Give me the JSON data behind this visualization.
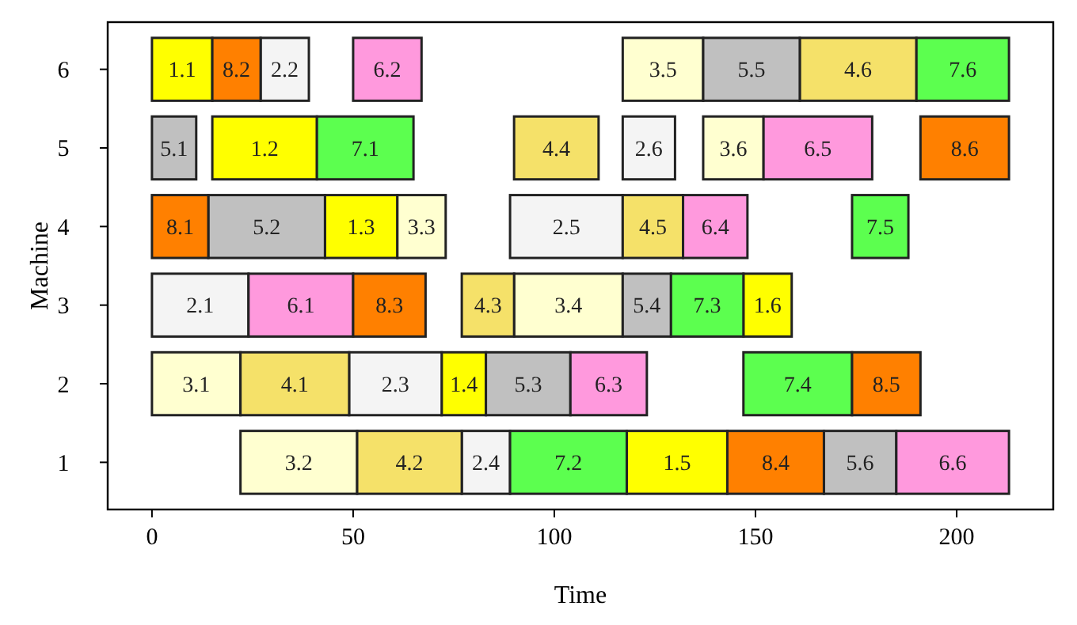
{
  "chart_data": {
    "type": "bar",
    "orientation": "horizontal",
    "xlabel": "Time",
    "ylabel": "Machine",
    "categories": [
      "6",
      "5",
      "4",
      "3",
      "2",
      "1"
    ],
    "xlim": [
      -11,
      224
    ],
    "xticks": [
      0,
      50,
      100,
      150,
      200
    ],
    "series": [
      {
        "color": "#ffff00",
        "base": [
          0,
          15,
          43,
          147,
          72,
          118
        ],
        "values": [
          15,
          26,
          18,
          12,
          11,
          25
        ]
      },
      {
        "color": "#f4f4f4",
        "base": [
          27,
          117,
          89,
          0,
          49,
          77
        ],
        "values": [
          12,
          13,
          28,
          24,
          23,
          12
        ]
      },
      {
        "color": "#ffffd0",
        "base": [
          117,
          137,
          61,
          90,
          0,
          22
        ],
        "values": [
          20,
          15,
          12,
          27,
          22,
          29
        ]
      },
      {
        "color": "#f5e169",
        "base": [
          161,
          90,
          117,
          77,
          22,
          51
        ],
        "values": [
          29,
          21,
          15,
          13,
          27,
          26
        ]
      },
      {
        "color": "#c0c0c0",
        "base": [
          137,
          0,
          14,
          117,
          83,
          167
        ],
        "values": [
          24,
          11,
          29,
          12,
          21,
          18
        ]
      },
      {
        "color": "#ff99dd",
        "base": [
          50,
          152,
          132,
          24,
          104,
          185
        ],
        "values": [
          17,
          27,
          16,
          26,
          19,
          28
        ]
      },
      {
        "color": "#5cff4f",
        "base": [
          190,
          41,
          174,
          129,
          147,
          89
        ],
        "values": [
          23,
          24,
          14,
          18,
          27,
          29
        ]
      },
      {
        "color": "#ff8000",
        "base": [
          15,
          191,
          0,
          50,
          174,
          143
        ],
        "values": [
          12,
          22,
          14,
          18,
          17,
          24
        ]
      }
    ],
    "annotations": [
      {
        "text": "1.1",
        "x": 7.5,
        "y": "6"
      },
      {
        "text": "1.2",
        "x": 28,
        "y": "5"
      },
      {
        "text": "1.3",
        "x": 52,
        "y": "4"
      },
      {
        "text": "1.6",
        "x": 153,
        "y": "3"
      },
      {
        "text": "1.4",
        "x": 77.5,
        "y": "2"
      },
      {
        "text": "1.5",
        "x": 130.5,
        "y": "1"
      },
      {
        "text": "2.2",
        "x": 33,
        "y": "6"
      },
      {
        "text": "2.6",
        "x": 123.5,
        "y": "5"
      },
      {
        "text": "2.5",
        "x": 103,
        "y": "4"
      },
      {
        "text": "2.1",
        "x": 12,
        "y": "3"
      },
      {
        "text": "2.3",
        "x": 60.5,
        "y": "2"
      },
      {
        "text": "2.4",
        "x": 83,
        "y": "1"
      },
      {
        "text": "3.5",
        "x": 127,
        "y": "6"
      },
      {
        "text": "3.6",
        "x": 144.5,
        "y": "5"
      },
      {
        "text": "3.3",
        "x": 67,
        "y": "4"
      },
      {
        "text": "3.4",
        "x": 103.5,
        "y": "3"
      },
      {
        "text": "3.1",
        "x": 11,
        "y": "2"
      },
      {
        "text": "3.2",
        "x": 36.5,
        "y": "1"
      },
      {
        "text": "4.6",
        "x": 175.5,
        "y": "6"
      },
      {
        "text": "4.4",
        "x": 100.5,
        "y": "5"
      },
      {
        "text": "4.5",
        "x": 124.5,
        "y": "4"
      },
      {
        "text": "4.3",
        "x": 83.5,
        "y": "3"
      },
      {
        "text": "4.1",
        "x": 35.5,
        "y": "2"
      },
      {
        "text": "4.2",
        "x": 64,
        "y": "1"
      },
      {
        "text": "5.5",
        "x": 149,
        "y": "6"
      },
      {
        "text": "5.1",
        "x": 5.5,
        "y": "5"
      },
      {
        "text": "5.2",
        "x": 28.5,
        "y": "4"
      },
      {
        "text": "5.4",
        "x": 123,
        "y": "3"
      },
      {
        "text": "5.3",
        "x": 93.5,
        "y": "2"
      },
      {
        "text": "5.6",
        "x": 176,
        "y": "1"
      },
      {
        "text": "6.2",
        "x": 58.5,
        "y": "6"
      },
      {
        "text": "6.5",
        "x": 165.5,
        "y": "5"
      },
      {
        "text": "6.4",
        "x": 140,
        "y": "4"
      },
      {
        "text": "6.1",
        "x": 37,
        "y": "3"
      },
      {
        "text": "6.3",
        "x": 113.5,
        "y": "2"
      },
      {
        "text": "6.6",
        "x": 199,
        "y": "1"
      },
      {
        "text": "7.6",
        "x": 201.5,
        "y": "6"
      },
      {
        "text": "7.1",
        "x": 53,
        "y": "5"
      },
      {
        "text": "7.5",
        "x": 181,
        "y": "4"
      },
      {
        "text": "7.3",
        "x": 138,
        "y": "3"
      },
      {
        "text": "7.4",
        "x": 160.5,
        "y": "2"
      },
      {
        "text": "7.2",
        "x": 103.5,
        "y": "1"
      },
      {
        "text": "8.2",
        "x": 21,
        "y": "6"
      },
      {
        "text": "8.6",
        "x": 202,
        "y": "5"
      },
      {
        "text": "8.1",
        "x": 7,
        "y": "4"
      },
      {
        "text": "8.3",
        "x": 59,
        "y": "3"
      },
      {
        "text": "8.5",
        "x": 182.5,
        "y": "2"
      },
      {
        "text": "8.4",
        "x": 155,
        "y": "1"
      }
    ]
  }
}
